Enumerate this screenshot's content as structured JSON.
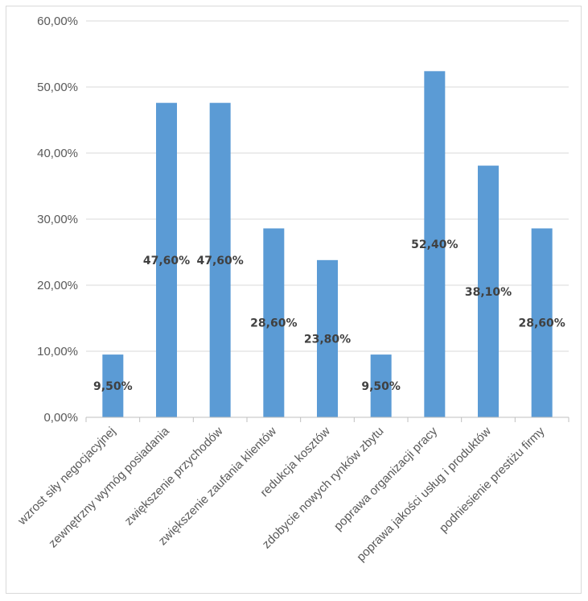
{
  "chart_data": {
    "type": "bar",
    "title": "",
    "xlabel": "",
    "ylabel": "",
    "ylim": [
      0,
      60
    ],
    "y_tick_values": [
      0,
      10,
      20,
      30,
      40,
      50,
      60
    ],
    "y_tick_labels": [
      "0,00%",
      "10,00%",
      "20,00%",
      "30,00%",
      "40,00%",
      "50,00%",
      "60,00%"
    ],
    "grid": true,
    "legend": "none",
    "bar_color": "#5b9bd5",
    "categories": [
      "wzrost siły negocjacyjnej",
      "zewnętrzny wymóg posiadania",
      "zwiększenie przychodów",
      "zwiększenie zaufania klientów",
      "redukcja kosztów",
      "zdobycie nowych rynków zbytu",
      "poprawa organizacji pracy",
      "poprawa jakości usług i produktów",
      "podniesienie prestiżu firmy"
    ],
    "values": [
      9.5,
      47.6,
      47.6,
      28.6,
      23.8,
      9.5,
      52.4,
      38.1,
      28.6
    ],
    "data_labels": [
      "9,50%",
      "47,60%",
      "47,60%",
      "28,60%",
      "23,80%",
      "9,50%",
      "52,40%",
      "38,10%",
      "28,60%"
    ]
  }
}
